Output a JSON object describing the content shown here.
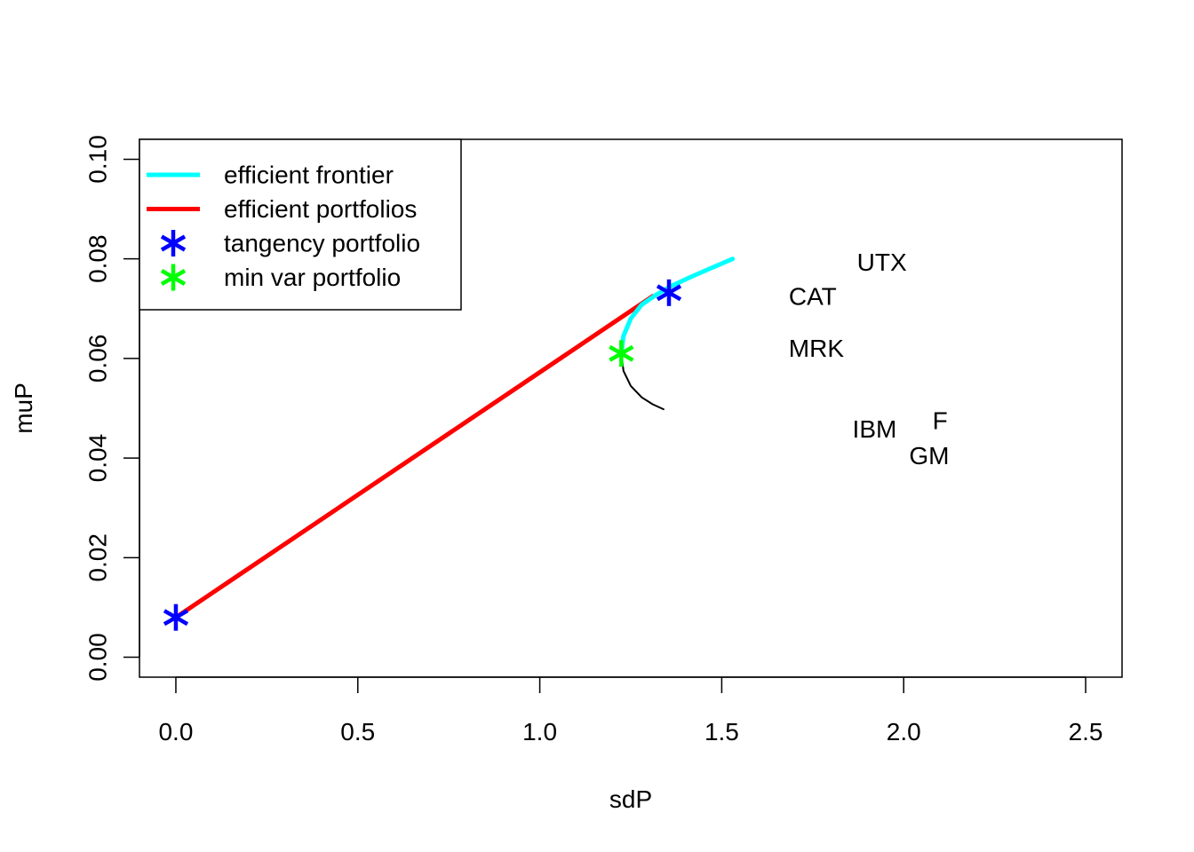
{
  "chart_data": {
    "type": "line",
    "xlabel": "sdP",
    "ylabel": "muP",
    "xlim": [
      -0.1,
      2.6
    ],
    "ylim": [
      -0.004,
      0.104
    ],
    "x_ticks": [
      "0.0",
      "0.5",
      "1.0",
      "1.5",
      "2.0",
      "2.5"
    ],
    "x_tick_values": [
      0,
      0.5,
      1.0,
      1.5,
      2.0,
      2.5
    ],
    "y_ticks": [
      "0.00",
      "0.02",
      "0.04",
      "0.06",
      "0.08",
      "0.10"
    ],
    "y_tick_values": [
      0,
      0.02,
      0.04,
      0.06,
      0.08,
      0.1
    ],
    "legend": {
      "position": "top-left",
      "entries": [
        {
          "label": "efficient frontier",
          "kind": "line",
          "color": "#00ffff"
        },
        {
          "label": "efficient portfolios",
          "kind": "line",
          "color": "#ff0000"
        },
        {
          "label": "tangency portfolio",
          "kind": "star",
          "color": "#0000ff"
        },
        {
          "label": "min var portfolio",
          "kind": "star",
          "color": "#00ff00"
        }
      ]
    },
    "series": [
      {
        "name": "efficient frontier",
        "color": "#00ffff",
        "points": [
          [
            1.224,
            0.061
          ],
          [
            1.23,
            0.0645
          ],
          [
            1.25,
            0.068
          ],
          [
            1.28,
            0.0708
          ],
          [
            1.32,
            0.0728
          ],
          [
            1.36,
            0.0745
          ],
          [
            1.41,
            0.0762
          ],
          [
            1.46,
            0.0778
          ],
          [
            1.53,
            0.08
          ]
        ]
      },
      {
        "name": "inefficient frontier",
        "color": "#000000",
        "points": [
          [
            1.224,
            0.061
          ],
          [
            1.23,
            0.0575
          ],
          [
            1.25,
            0.0545
          ],
          [
            1.28,
            0.0522
          ],
          [
            1.31,
            0.0508
          ],
          [
            1.34,
            0.0498
          ]
        ]
      },
      {
        "name": "efficient portfolios",
        "color": "#ff0000",
        "points": [
          [
            0.0,
            0.008
          ],
          [
            1.31,
            0.0725
          ]
        ]
      }
    ],
    "markers": [
      {
        "name": "tangency portfolio",
        "color": "#0000ff",
        "x": 0.0,
        "y": 0.008
      },
      {
        "name": "tangency portfolio",
        "color": "#0000ff",
        "x": 1.355,
        "y": 0.0732
      },
      {
        "name": "min var portfolio",
        "color": "#00ff00",
        "x": 1.224,
        "y": 0.061
      }
    ],
    "assets": [
      {
        "label": "UTX",
        "x": 1.94,
        "y": 0.0793
      },
      {
        "label": "CAT",
        "x": 1.75,
        "y": 0.0725
      },
      {
        "label": "MRK",
        "x": 1.76,
        "y": 0.062
      },
      {
        "label": "IBM",
        "x": 1.92,
        "y": 0.0458
      },
      {
        "label": "F",
        "x": 2.1,
        "y": 0.0475
      },
      {
        "label": "GM",
        "x": 2.07,
        "y": 0.0405
      }
    ]
  }
}
